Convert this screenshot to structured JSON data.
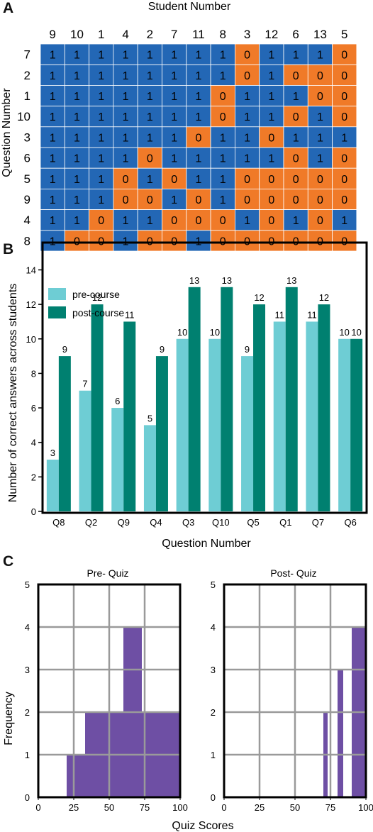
{
  "panels": {
    "a": "A",
    "b": "B",
    "c": "C"
  },
  "colors": {
    "correct": "#2367b5",
    "incorrect": "#f07a28",
    "pre_course": "#6ecdd4",
    "post_course": "#008070",
    "histogram": "#6e4fa4",
    "grid": "#9a9a9a"
  },
  "chart_data": [
    {
      "type": "heatmap",
      "xlabel": "Student Number",
      "ylabel": "Question Number",
      "columns": [
        "9",
        "10",
        "1",
        "4",
        "2",
        "7",
        "11",
        "8",
        "3",
        "12",
        "6",
        "13",
        "5"
      ],
      "rows": [
        "7",
        "2",
        "1",
        "10",
        "3",
        "6",
        "5",
        "9",
        "4",
        "8"
      ],
      "values": [
        [
          1,
          1,
          1,
          1,
          1,
          1,
          1,
          1,
          0,
          1,
          1,
          1,
          0
        ],
        [
          1,
          1,
          1,
          1,
          1,
          1,
          1,
          1,
          0,
          1,
          0,
          0,
          0
        ],
        [
          1,
          1,
          1,
          1,
          1,
          1,
          1,
          0,
          1,
          1,
          1,
          0,
          0
        ],
        [
          1,
          1,
          1,
          1,
          1,
          1,
          1,
          0,
          1,
          1,
          0,
          1,
          0
        ],
        [
          1,
          1,
          1,
          1,
          1,
          1,
          0,
          1,
          1,
          0,
          1,
          1,
          1
        ],
        [
          1,
          1,
          1,
          1,
          0,
          1,
          1,
          1,
          1,
          1,
          0,
          1,
          0
        ],
        [
          1,
          1,
          1,
          0,
          1,
          0,
          1,
          1,
          0,
          0,
          0,
          0,
          0
        ],
        [
          1,
          1,
          1,
          0,
          0,
          1,
          0,
          1,
          0,
          0,
          0,
          0,
          0
        ],
        [
          1,
          1,
          0,
          1,
          1,
          0,
          0,
          0,
          1,
          0,
          1,
          0,
          1
        ],
        [
          1,
          0,
          0,
          1,
          0,
          0,
          1,
          0,
          0,
          0,
          0,
          0,
          0
        ]
      ]
    },
    {
      "type": "bar",
      "xlabel": "Question Number",
      "ylabel": "Number of correct answers across students",
      "categories": [
        "Q8",
        "Q2",
        "Q9",
        "Q4",
        "Q3",
        "Q10",
        "Q5",
        "Q1",
        "Q7",
        "Q6"
      ],
      "series": [
        {
          "name": "pre-course",
          "values": [
            3,
            7,
            6,
            5,
            10,
            10,
            9,
            11,
            11,
            10
          ]
        },
        {
          "name": "post-course",
          "values": [
            9,
            12,
            11,
            9,
            13,
            13,
            12,
            13,
            12,
            10
          ]
        }
      ],
      "ylim": [
        0,
        15.5
      ],
      "yticks": [
        0,
        2,
        4,
        6,
        8,
        10,
        12,
        14
      ],
      "legend": "top-left"
    },
    {
      "type": "bar",
      "title": "Pre- Quiz",
      "ylabel": "Frequency",
      "xticks": [
        0,
        25,
        50,
        75,
        100
      ],
      "yticks": [
        0,
        1,
        2,
        3,
        4,
        5
      ],
      "xlim": [
        0,
        100
      ],
      "ylim": [
        0,
        5
      ],
      "bins": [
        {
          "start": 20,
          "end": 33,
          "count": 1
        },
        {
          "start": 33,
          "end": 60,
          "count": 2
        },
        {
          "start": 60,
          "end": 73,
          "count": 4
        },
        {
          "start": 73,
          "end": 100,
          "count": 2
        }
      ]
    },
    {
      "type": "bar",
      "title": "Post- Quiz",
      "xticks": [
        0,
        25,
        50,
        75,
        100
      ],
      "yticks": [
        0,
        1,
        2,
        3,
        4,
        5
      ],
      "xlim": [
        0,
        100
      ],
      "ylim": [
        0,
        5
      ],
      "bins": [
        {
          "start": 70,
          "end": 73,
          "count": 2
        },
        {
          "start": 80,
          "end": 84,
          "count": 3
        },
        {
          "start": 90,
          "end": 100,
          "count": 4
        }
      ]
    }
  ],
  "shared_xlabel": "Quiz Scores"
}
